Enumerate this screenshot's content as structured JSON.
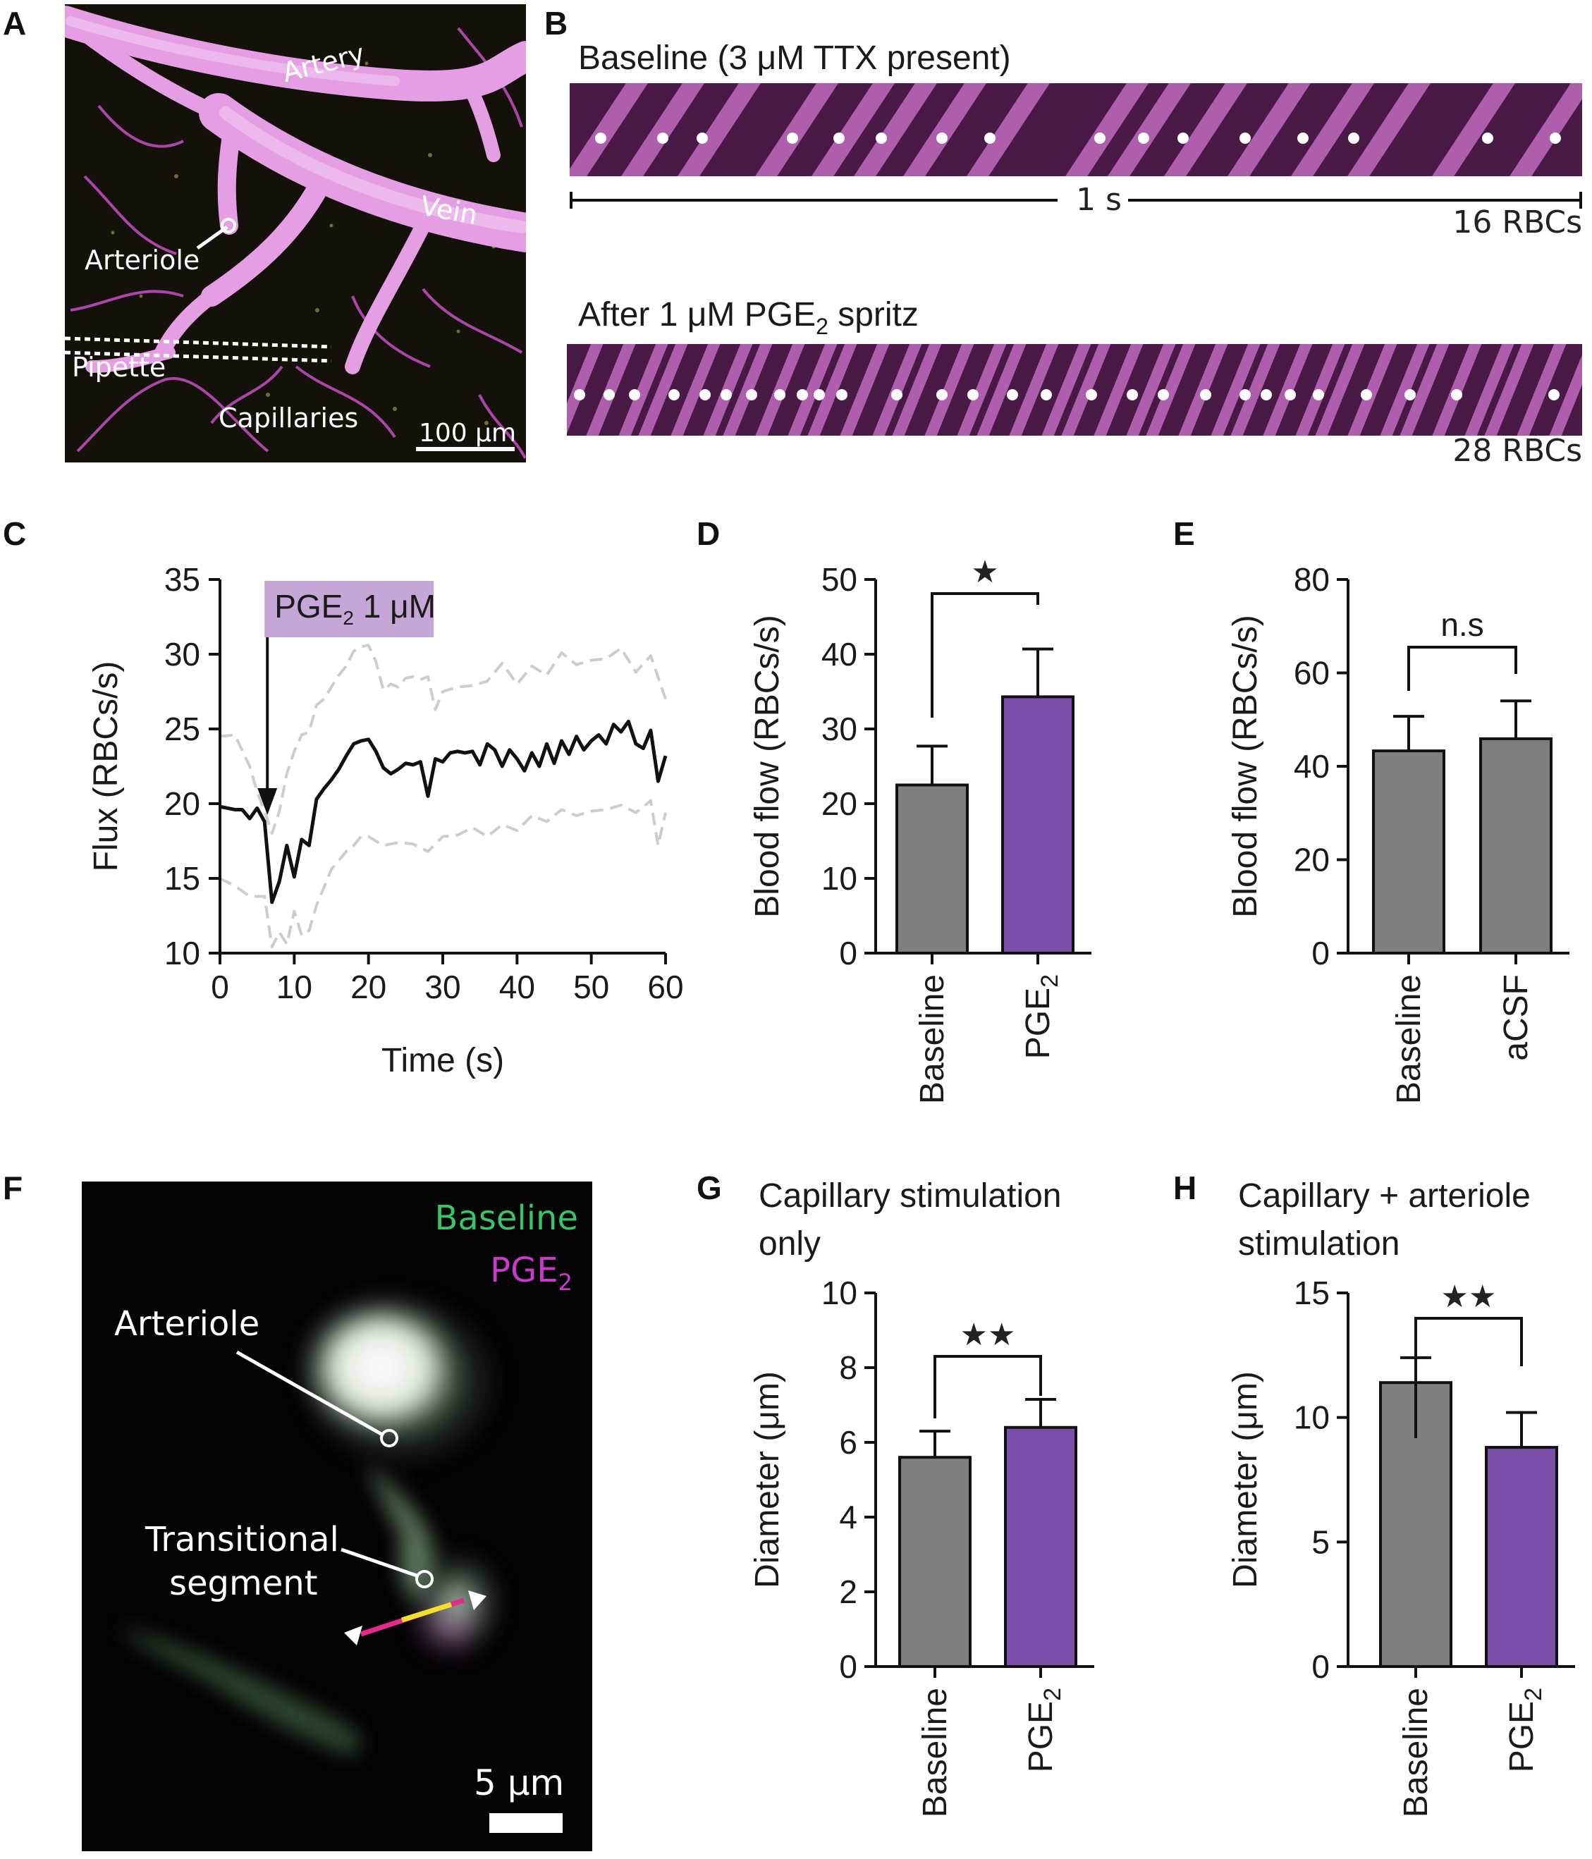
{
  "colors": {
    "bar_gray": "#7f7f7f",
    "bar_purple": "#7b4fa8",
    "magenta": "#d36fd6",
    "label_box": "#c6a6d6",
    "green_label": "#3ac46a",
    "pge2_label": "#cc3acc",
    "dashed_gray": "#cccccc"
  },
  "panels": {
    "A": {
      "letter": "A",
      "labels": {
        "artery": "Artery",
        "vein": "Vein",
        "arteriole": "Arteriole",
        "pipette": "Pipette",
        "capillaries": "Capillaries",
        "scale": "100 μm"
      }
    },
    "B": {
      "letter": "B",
      "baseline_title": "Baseline (3 μM TTX present)",
      "scale_label": "1 s",
      "baseline_count": "16 RBCs",
      "after_title_main": "After 1 μM PGE",
      "after_title_sub": "2",
      "after_title_tail": " spritz",
      "after_count": "28 RBCs"
    },
    "C": {
      "letter": "C",
      "annotation_main": "PGE",
      "annotation_sub": "2",
      "annotation_tail": " 1 μM"
    },
    "D": {
      "letter": "D",
      "significance": "★"
    },
    "E": {
      "letter": "E",
      "significance": "n.s"
    },
    "F": {
      "letter": "F",
      "labels": {
        "baseline": "Baseline",
        "pge": "PGE",
        "pge_sub": "2",
        "arteriole": "Arteriole",
        "transitional_1": "Transitional",
        "transitional_2": "segment",
        "scale": "5 μm"
      }
    },
    "G": {
      "letter": "G",
      "title_1": "Capillary stimulation",
      "title_2": "only",
      "significance": "★★"
    },
    "H": {
      "letter": "H",
      "title_1": "Capillary + arteriole",
      "title_2": "stimulation",
      "significance": "★★"
    }
  },
  "chart_data": [
    {
      "panel": "C",
      "type": "line",
      "xlabel": "Time (s)",
      "ylabel": "Flux (RBCs/s)",
      "xlim": [
        0,
        60
      ],
      "ylim": [
        10,
        35
      ],
      "xticks": [
        "0",
        "10",
        "20",
        "30",
        "40",
        "50",
        "60"
      ],
      "yticks": [
        "10",
        "15",
        "20",
        "25",
        "30",
        "35"
      ],
      "annotation_x": 6,
      "series": [
        {
          "style": "solid",
          "x": [
            0,
            1,
            2,
            3,
            4,
            5,
            6,
            7,
            8,
            9,
            10,
            11,
            12,
            13,
            14,
            15,
            16,
            17,
            18,
            19,
            20,
            21,
            22,
            23,
            24,
            25,
            26,
            27,
            28,
            29,
            30,
            31,
            32,
            33,
            34,
            35,
            36,
            37,
            38,
            39,
            40,
            41,
            42,
            43,
            44,
            45,
            46,
            47,
            48,
            49,
            50,
            51,
            52,
            53,
            54,
            55,
            56,
            57,
            58,
            59,
            60
          ],
          "y": [
            19.8,
            19.7,
            19.6,
            19.6,
            19.0,
            19.7,
            18.8,
            13.4,
            14.8,
            17.2,
            15.1,
            17.6,
            17.2,
            20.3,
            21.0,
            21.6,
            22.3,
            23.2,
            24.0,
            24.2,
            24.3,
            23.5,
            22.4,
            22.0,
            22.3,
            22.7,
            22.6,
            22.8,
            20.5,
            23.0,
            22.8,
            23.4,
            23.5,
            23.4,
            23.5,
            22.6,
            24.0,
            23.6,
            22.5,
            23.6,
            23.0,
            22.2,
            23.4,
            22.5,
            24.0,
            22.7,
            24.2,
            23.3,
            24.5,
            23.6,
            24.2,
            24.6,
            24.0,
            25.3,
            24.8,
            25.5,
            24.0,
            23.7,
            24.9,
            21.5,
            23.2
          ]
        },
        {
          "style": "dashed",
          "x": [
            0,
            2,
            4,
            5,
            6,
            7,
            8,
            9,
            10,
            11,
            12,
            13,
            14,
            15,
            16,
            17,
            18,
            19,
            20,
            21,
            22,
            23,
            24,
            25,
            26,
            27,
            28,
            29,
            30,
            32,
            34,
            36,
            38,
            40,
            42,
            44,
            46,
            48,
            50,
            52,
            54,
            56,
            58,
            60
          ],
          "y": [
            24.5,
            24.6,
            22.5,
            20.8,
            19.5,
            18.0,
            19.5,
            22.0,
            23.5,
            24.6,
            24.8,
            26.6,
            27.0,
            27.8,
            28.6,
            29.2,
            30.2,
            30.5,
            30.6,
            29.5,
            27.6,
            28.0,
            27.8,
            28.4,
            28.5,
            28.3,
            28.5,
            26.3,
            27.5,
            27.8,
            27.9,
            28.2,
            29.4,
            28.0,
            29.2,
            28.6,
            30.1,
            29.3,
            29.6,
            29.7,
            30.4,
            28.8,
            29.9,
            27.0
          ]
        },
        {
          "style": "dashed",
          "x": [
            0,
            2,
            4,
            6,
            7,
            8,
            9,
            10,
            11,
            12,
            13,
            14,
            15,
            16,
            17,
            18,
            19,
            20,
            22,
            24,
            26,
            28,
            30,
            32,
            34,
            36,
            38,
            40,
            42,
            44,
            46,
            48,
            50,
            52,
            54,
            56,
            58,
            59,
            60
          ],
          "y": [
            15.0,
            14.5,
            13.8,
            13.8,
            10.4,
            11.4,
            10.6,
            12.8,
            11.2,
            11.5,
            13.2,
            14.4,
            15.6,
            16.2,
            16.8,
            17.2,
            17.8,
            17.8,
            17.2,
            17.4,
            17.3,
            16.8,
            17.8,
            17.9,
            18.4,
            17.8,
            18.6,
            18.2,
            19.2,
            18.8,
            19.6,
            19.2,
            19.5,
            19.6,
            19.9,
            19.4,
            20.2,
            17.2,
            19.4
          ]
        }
      ]
    },
    {
      "panel": "D",
      "type": "bar",
      "categories": [
        "Baseline",
        "PGE"
      ],
      "category_subscripts": [
        "",
        "2"
      ],
      "values": [
        22.5,
        34.3
      ],
      "errors": [
        5.2,
        6.4
      ],
      "ylabel": "Blood flow (RBCs/s)",
      "ylim": [
        0,
        50
      ],
      "yticks": [
        "0",
        "10",
        "20",
        "30",
        "40",
        "50"
      ]
    },
    {
      "panel": "E",
      "type": "bar",
      "categories": [
        "Baseline",
        "aCSF"
      ],
      "category_subscripts": [
        "",
        ""
      ],
      "values": [
        43.3,
        45.9
      ],
      "errors": [
        7.4,
        8.1
      ],
      "ylabel": "Blood flow (RBCs/s)",
      "ylim": [
        0,
        80
      ],
      "yticks": [
        "0",
        "20",
        "40",
        "60",
        "80"
      ]
    },
    {
      "panel": "G",
      "type": "bar",
      "categories": [
        "Baseline",
        "PGE"
      ],
      "category_subscripts": [
        "",
        "2"
      ],
      "values": [
        5.6,
        6.4
      ],
      "errors": [
        0.7,
        0.75
      ],
      "ylabel": "Diameter (μm)",
      "ylim": [
        0,
        10
      ],
      "yticks": [
        "0",
        "2",
        "4",
        "6",
        "8",
        "10"
      ]
    },
    {
      "panel": "H",
      "type": "bar",
      "categories": [
        "Baseline",
        "PGE"
      ],
      "category_subscripts": [
        "",
        "2"
      ],
      "values": [
        11.4,
        8.8
      ],
      "errors": [
        1.0,
        1.4
      ],
      "ylabel": "Diameter (μm)",
      "ylim": [
        0,
        15
      ],
      "yticks": [
        "0",
        "5",
        "10",
        "15"
      ]
    }
  ]
}
